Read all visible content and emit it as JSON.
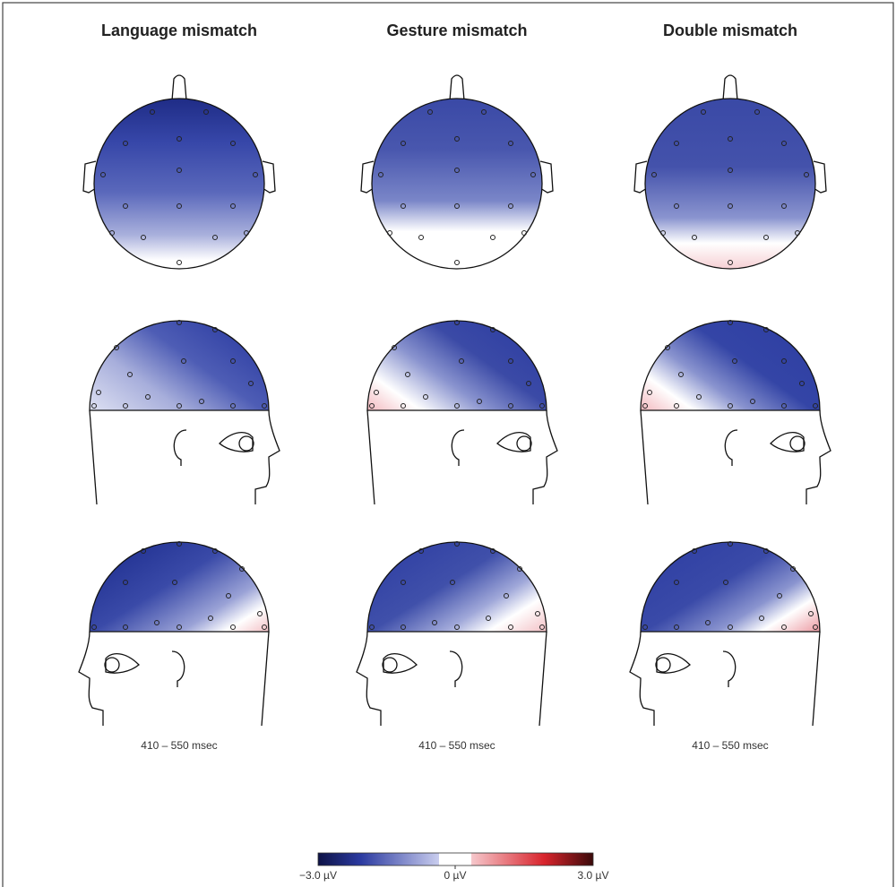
{
  "columns": [
    {
      "title": "Language mismatch",
      "time": "410 – 550 msec"
    },
    {
      "title": "Gesture mismatch",
      "time": "410 – 550 msec"
    },
    {
      "title": "Double mismatch",
      "time": "410 – 550 msec"
    }
  ],
  "colorbar": {
    "min_label": "−3.0 µV",
    "mid_label": "0 µV",
    "max_label": "3.0 µV"
  }
}
